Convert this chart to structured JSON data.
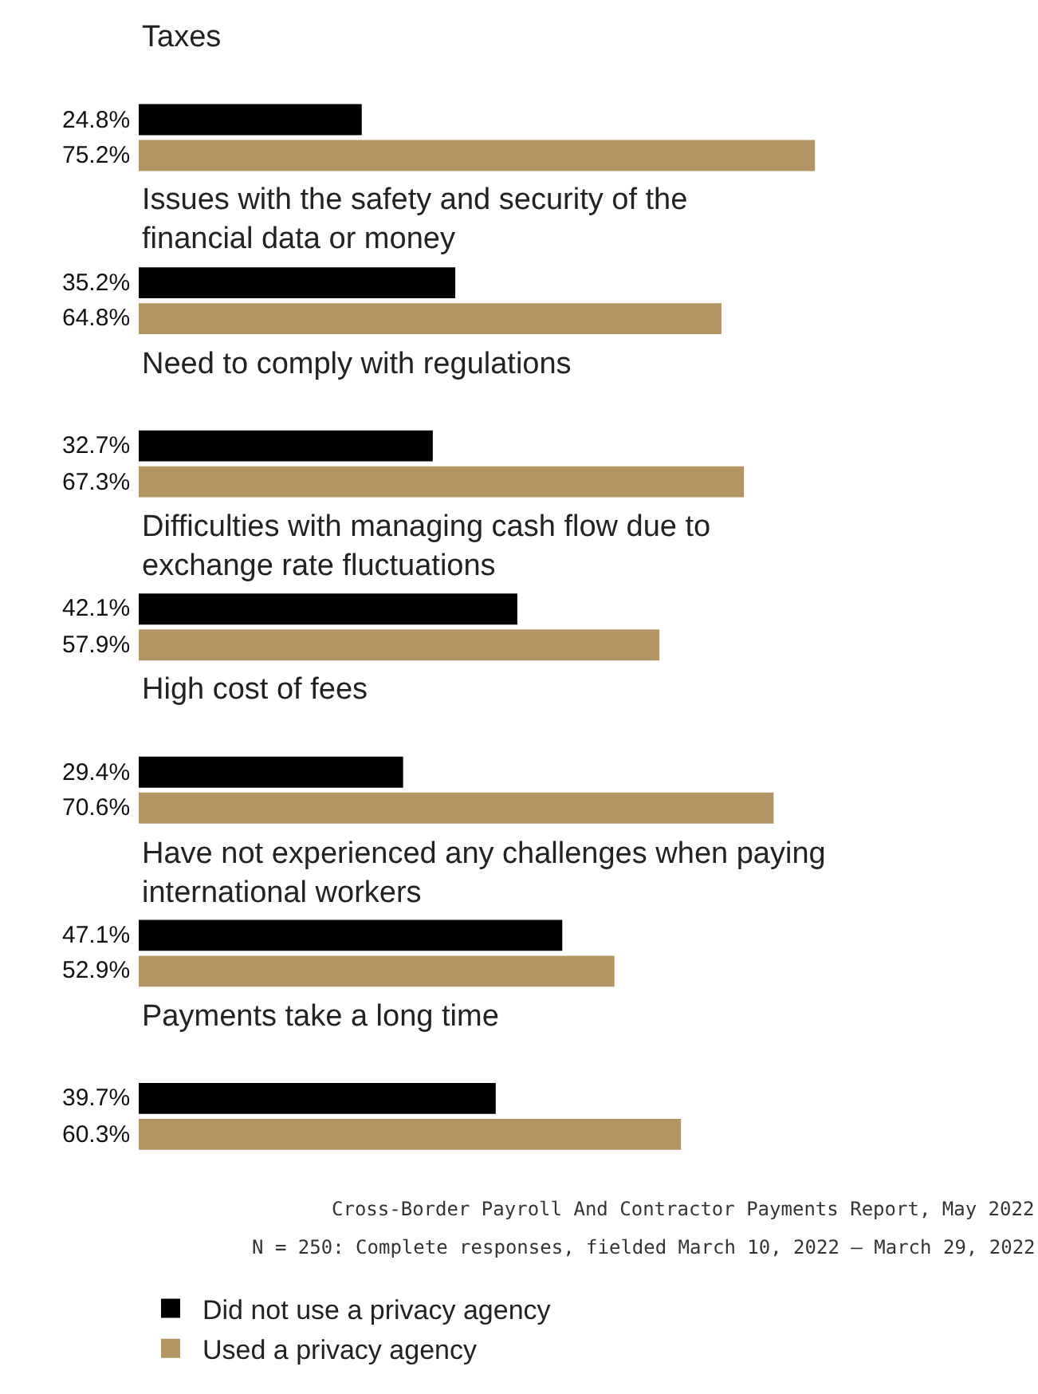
{
  "chart_data": {
    "type": "bar",
    "orientation": "horizontal",
    "categories": [
      "Taxes",
      "Issues with the safety and security of the financial data or money",
      "Need to comply with regulations",
      "Difficulties with managing cash flow due to exchange rate fluctuations",
      "High cost of fees",
      "Have not experienced any challenges when paying international workers",
      "Payments take a long time"
    ],
    "series": [
      {
        "name": "Did not use a privacy agency",
        "color": "#000000",
        "values": [
          24.8,
          35.2,
          32.7,
          42.1,
          29.4,
          47.1,
          39.7
        ],
        "value_labels": [
          "24.8%",
          "35.2%",
          "32.7%",
          "42.1%",
          "29.4%",
          "47.1%",
          "39.7%"
        ]
      },
      {
        "name": "Used a privacy agency",
        "color": "#b39464",
        "values": [
          75.2,
          64.8,
          67.3,
          57.9,
          70.6,
          52.9,
          60.3
        ],
        "value_labels": [
          "75.2%",
          "64.8%",
          "67.3%",
          "57.9%",
          "70.6%",
          "52.9%",
          "60.3%"
        ]
      }
    ],
    "xlim": [
      0,
      100
    ],
    "tick_labels": false,
    "grid": false,
    "legend": "bottom left",
    "annotations": [
      "Cross-Border Payroll And Contractor Payments Report, May 2022",
      "N = 250: Complete responses, fielded March 10, 2022 – March 29, 2022"
    ]
  }
}
